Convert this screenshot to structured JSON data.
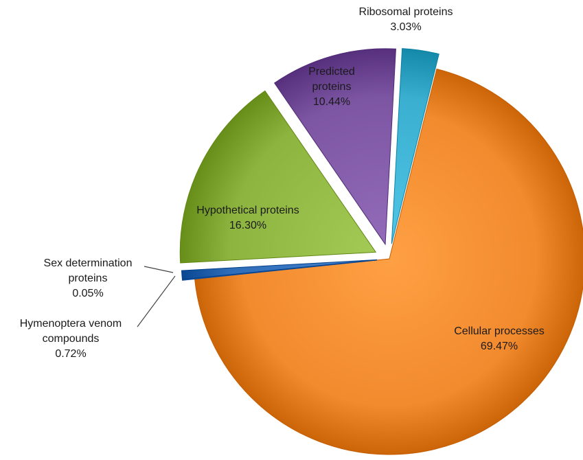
{
  "chart_data": {
    "type": "pie",
    "title": "",
    "exploded": true,
    "style": "3d-shaded",
    "slices": [
      {
        "label": "Cellular processes",
        "value": 69.47,
        "value_label": "69.47%",
        "color": "#F28A2E"
      },
      {
        "label": "Sex determination proteins",
        "value": 0.05,
        "value_label": "0.05%",
        "color": "#3E7CC9"
      },
      {
        "label": "Hymenoptera venom compounds",
        "value": 0.72,
        "value_label": "0.72%",
        "color": "#2F6DB8"
      },
      {
        "label": "Hypothetical proteins",
        "value": 16.3,
        "value_label": "16.30%",
        "color": "#8DB43F"
      },
      {
        "label": "Predicted proteins",
        "value": 10.44,
        "value_label": "10.44%",
        "color": "#7C55A3"
      },
      {
        "label": "Ribosomal proteins",
        "value": 3.03,
        "value_label": "3.03%",
        "color": "#3AAFD0"
      }
    ]
  }
}
